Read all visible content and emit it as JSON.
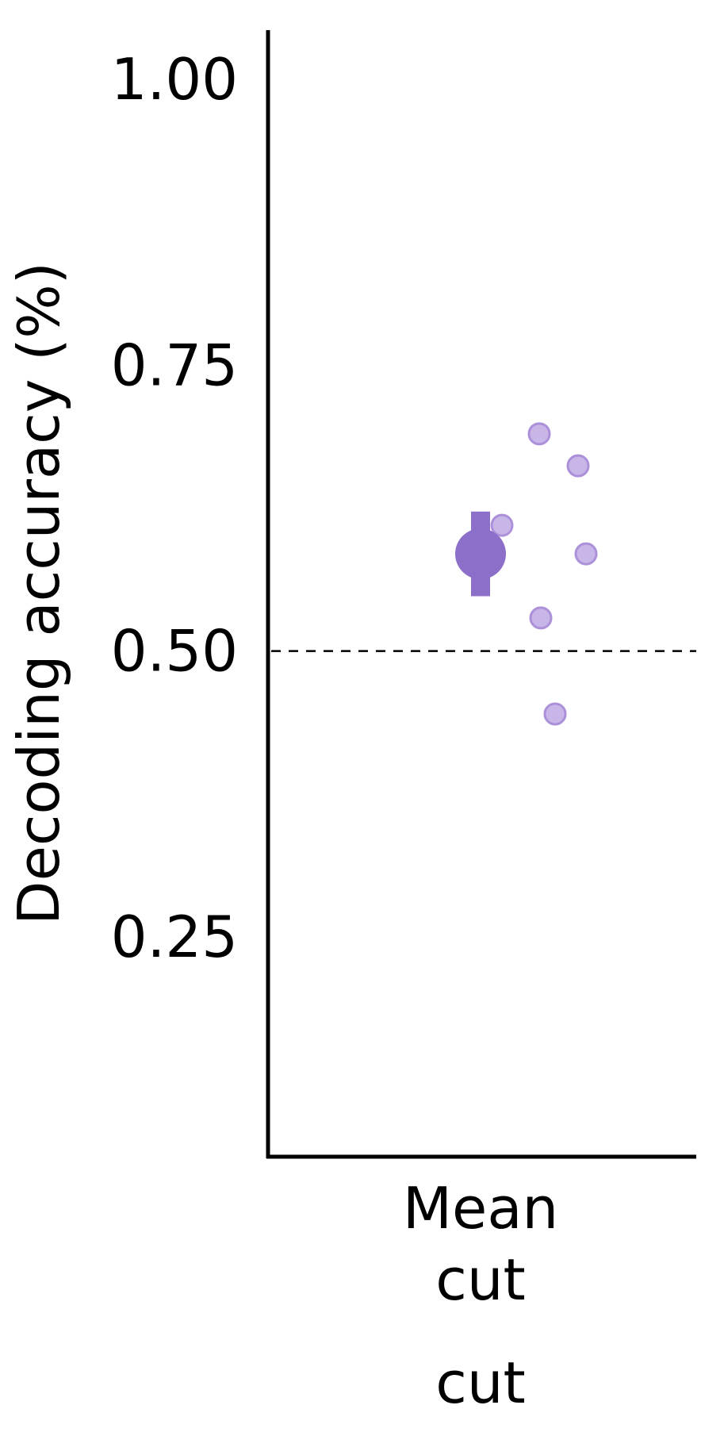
{
  "chart_data": {
    "type": "scatter",
    "ylabel": "Decoding accuracy (%)",
    "ylim": [
      0.0,
      1.05
    ],
    "y_ticks": [
      "0.25",
      "0.50",
      "0.75",
      "1.00"
    ],
    "y_tick_values": [
      0.25,
      0.5,
      0.75,
      1.0
    ],
    "categories": [
      "Mean"
    ],
    "category_sublabels": [
      "cut",
      "cut"
    ],
    "reference_line": {
      "y": 0.5,
      "style": "dashed"
    },
    "mean": {
      "value": 0.585,
      "error_low": 0.548,
      "error_high": 0.622
    },
    "points": [
      0.69,
      0.662,
      0.61,
      0.585,
      0.529,
      0.445
    ],
    "colors": {
      "mean": "#8b6fc9",
      "points": "#c5b3e6",
      "points_stroke": "#a88bd8",
      "axis": "#000000"
    },
    "grid": false
  }
}
